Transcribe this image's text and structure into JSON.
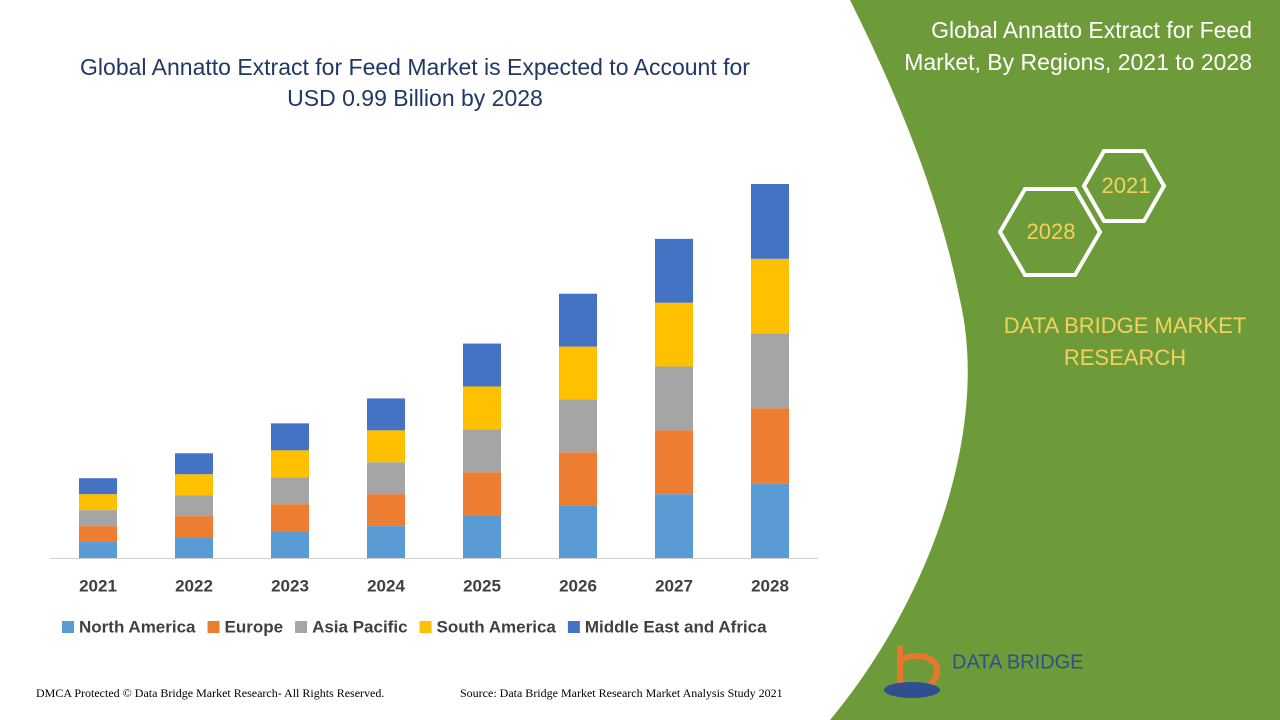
{
  "chart_data": {
    "type": "bar",
    "stacked": true,
    "title": "Global Annatto Extract for Feed Market is Expected to Account for USD 0.99 Billion by 2028",
    "categories": [
      "2021",
      "2022",
      "2023",
      "2024",
      "2025",
      "2026",
      "2027",
      "2028"
    ],
    "series": [
      {
        "name": "North America",
        "color": "#5b9bd5",
        "values": [
          16,
          21,
          27,
          32,
          43,
          53,
          64,
          75
        ]
      },
      {
        "name": "Europe",
        "color": "#ed7d31",
        "values": [
          16,
          21,
          27,
          32,
          43,
          53,
          64,
          75
        ]
      },
      {
        "name": "Asia Pacific",
        "color": "#a5a5a5",
        "values": [
          16,
          21,
          27,
          32,
          43,
          53,
          64,
          75
        ]
      },
      {
        "name": "South America",
        "color": "#ffc000",
        "values": [
          16,
          21,
          27,
          32,
          43,
          53,
          64,
          75
        ]
      },
      {
        "name": "Middle East and Africa",
        "color": "#4472c4",
        "values": [
          16,
          21,
          27,
          32,
          43,
          53,
          64,
          75
        ]
      }
    ]
  },
  "sidebar": {
    "title": "Global Annatto Extract for Feed Market, By Regions, 2021 to 2028",
    "hex_labels": [
      "2021",
      "2028"
    ],
    "brand": "DATA BRIDGE MARKET RESEARCH",
    "logo": "DATA BRIDGE"
  },
  "footer": {
    "left": "DMCA Protected © Data Bridge Market Research- All Rights Reserved.",
    "right": "Source: Data Bridge Market Research Market Analysis Study 2021"
  }
}
